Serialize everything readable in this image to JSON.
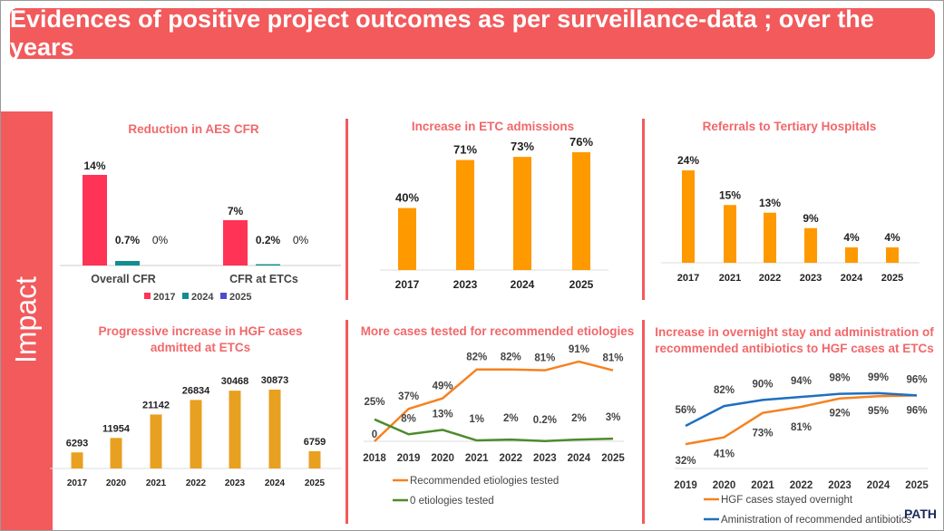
{
  "header": {
    "title": "Evidences of positive project outcomes as per surveillance-data ; over the years"
  },
  "section_label": "Impact",
  "logo": "PATH",
  "chart_data": [
    {
      "id": "cfr",
      "type": "bar",
      "title": "Reduction in AES CFR",
      "categories": [
        "Overall CFR",
        "CFR at ETCs"
      ],
      "series": [
        {
          "name": "2017",
          "values": [
            14,
            7
          ],
          "labels": [
            "14%",
            "7%"
          ],
          "color": "#FF3355"
        },
        {
          "name": "2024",
          "values": [
            0.7,
            0.2
          ],
          "labels": [
            "0.7%",
            "0.2%"
          ],
          "color": "#138D90"
        },
        {
          "name": "2025",
          "values": [
            0,
            0
          ],
          "labels": [
            "0%",
            "0%"
          ],
          "color": "#4B4BD0"
        }
      ],
      "legend": "bottom",
      "ylim": [
        0,
        14
      ]
    },
    {
      "id": "etc",
      "type": "bar",
      "title": "Increase in ETC admissions",
      "categories": [
        "2017",
        "2023",
        "2024",
        "2025"
      ],
      "values": [
        40,
        71,
        73,
        76
      ],
      "labels": [
        "40%",
        "71%",
        "73%",
        "76%"
      ],
      "color": "#FF9900",
      "ylim": [
        0,
        76
      ]
    },
    {
      "id": "ref",
      "type": "bar",
      "title": "Referrals to Tertiary Hospitals",
      "categories": [
        "2017",
        "2021",
        "2022",
        "2023",
        "2024",
        "2025"
      ],
      "values": [
        24,
        15,
        13,
        9,
        4,
        4
      ],
      "labels": [
        "24%",
        "15%",
        "13%",
        "9%",
        "4%",
        "4%"
      ],
      "color": "#FF9900",
      "ylim": [
        0,
        24
      ]
    },
    {
      "id": "hgf",
      "type": "bar",
      "title": "Progressive increase in HGF cases admitted at ETCs",
      "categories": [
        "2017",
        "2020",
        "2021",
        "2022",
        "2023",
        "2024",
        "2025"
      ],
      "values": [
        6293,
        11954,
        21142,
        26834,
        30468,
        30873,
        6759
      ],
      "labels": [
        "6293",
        "11954",
        "21142",
        "26834",
        "30468",
        "30873",
        "6759"
      ],
      "color": "#E8A020",
      "ylim": [
        0,
        30873
      ]
    },
    {
      "id": "etio",
      "type": "line",
      "title": "More cases tested for recommended etiologies",
      "x": [
        "2018",
        "2019",
        "2020",
        "2021",
        "2022",
        "2023",
        "2024",
        "2025"
      ],
      "series": [
        {
          "name": "Recommended etiologies tested",
          "values": [
            0,
            37,
            49,
            82,
            82,
            81,
            91,
            81
          ],
          "labels": [
            "0",
            "37%",
            "49%",
            "82%",
            "82%",
            "81%",
            "91%",
            "81%"
          ],
          "color": "#F58220"
        },
        {
          "name": "0 etiologies tested",
          "values": [
            25,
            8,
            13,
            1,
            2,
            0.2,
            2,
            3
          ],
          "labels": [
            "25%",
            "8%",
            "13%",
            "1%",
            "2%",
            "0.2%",
            "2%",
            "3%"
          ],
          "color": "#4E8A2E"
        }
      ],
      "legend": "bottom",
      "ylim": [
        0,
        91
      ]
    },
    {
      "id": "ovn",
      "type": "line",
      "title": "Increase in overnight stay and administration of recommended antibiotics to HGF cases at ETCs",
      "x": [
        "2019",
        "2020",
        "2021",
        "2022",
        "2023",
        "2024",
        "2025"
      ],
      "series": [
        {
          "name": "HGF cases stayed overnight",
          "values": [
            32,
            41,
            73,
            81,
            92,
            95,
            96
          ],
          "labels": [
            "32%",
            "41%",
            "73%",
            "81%",
            "92%",
            "95%",
            "96%"
          ],
          "color": "#F58220"
        },
        {
          "name": "Aministration of recommended antibiotics",
          "values": [
            56,
            82,
            90,
            94,
            98,
            99,
            96
          ],
          "labels": [
            "56%",
            "82%",
            "90%",
            "94%",
            "98%",
            "99%",
            "96%"
          ],
          "color": "#1F6FC0"
        }
      ],
      "legend": "bottom",
      "ylim": [
        0,
        100
      ]
    }
  ]
}
